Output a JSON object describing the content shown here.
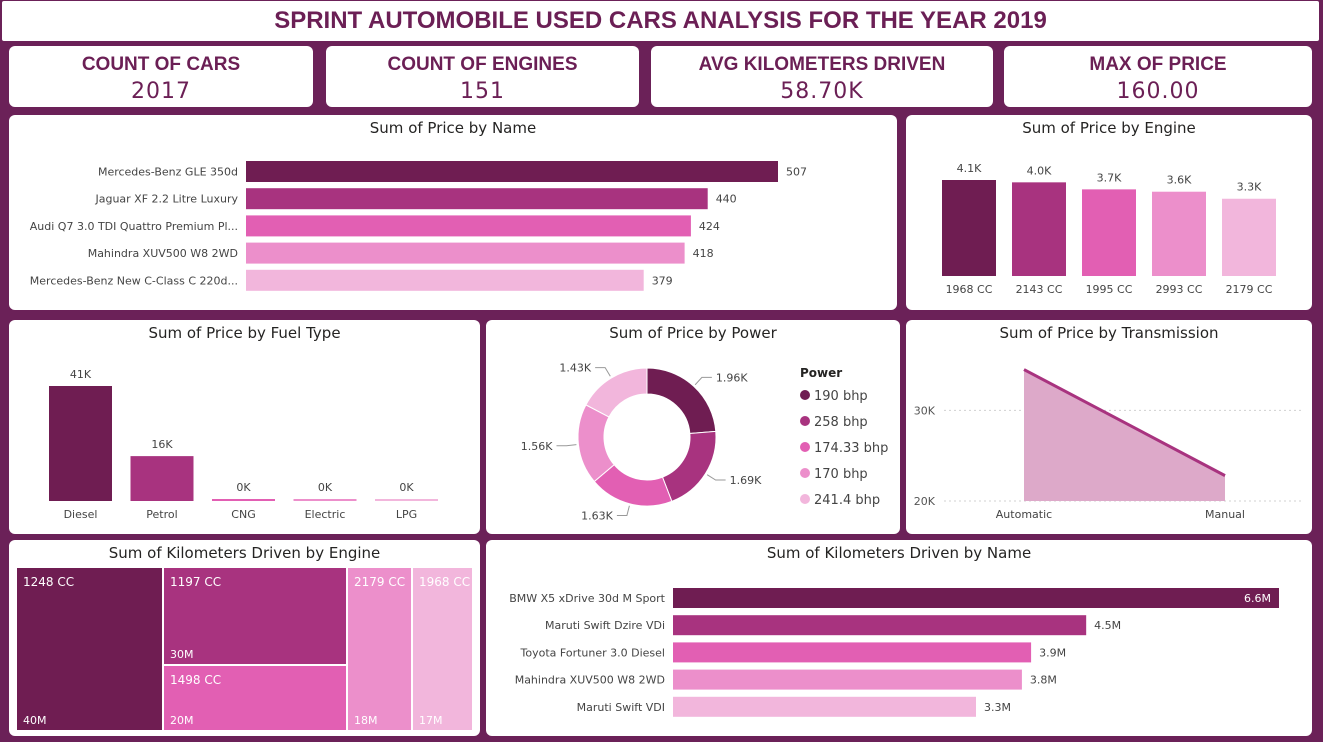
{
  "title": "SPRINT AUTOMOBILE USED CARS ANALYSIS FOR THE YEAR 2019",
  "kpis": [
    {
      "label": "COUNT OF CARS",
      "value": "2017"
    },
    {
      "label": "COUNT OF ENGINES",
      "value": "151"
    },
    {
      "label": "AVG KILOMETERS DRIVEN",
      "value": "58.70K"
    },
    {
      "label": "MAX OF PRICE",
      "value": "160.00"
    }
  ],
  "palette": [
    "#6f1d52",
    "#a8337f",
    "#e25fb3",
    "#ec8fcb",
    "#f2b6dc"
  ],
  "chart_data": [
    {
      "id": "price_by_name",
      "type": "bar",
      "orientation": "horizontal",
      "title": "Sum of Price by Name",
      "categories": [
        "Mercedes-Benz GLE 350d",
        "Jaguar XF 2.2 Litre Luxury",
        "Audi Q7 3.0 TDI Quattro Premium Pl...",
        "Mahindra XUV500 W8 2WD",
        "Mercedes-Benz New C-Class C 220d..."
      ],
      "values": [
        507,
        440,
        424,
        418,
        379
      ],
      "labels": [
        "507",
        "440",
        "424",
        "418",
        "379"
      ],
      "xlim": [
        0,
        507
      ]
    },
    {
      "id": "price_by_engine",
      "type": "bar",
      "title": "Sum of Price by Engine",
      "categories": [
        "1968 CC",
        "2143 CC",
        "1995 CC",
        "2993 CC",
        "2179 CC"
      ],
      "values": [
        4100,
        4000,
        3700,
        3600,
        3300
      ],
      "labels": [
        "4.1K",
        "4.0K",
        "3.7K",
        "3.6K",
        "3.3K"
      ],
      "ylim": [
        0,
        4100
      ]
    },
    {
      "id": "price_by_fuel",
      "type": "bar",
      "title": "Sum of Price by Fuel Type",
      "categories": [
        "Diesel",
        "Petrol",
        "CNG",
        "Electric",
        "LPG"
      ],
      "values": [
        41000,
        16000,
        0,
        0,
        0
      ],
      "labels": [
        "41K",
        "16K",
        "0K",
        "0K",
        "0K"
      ],
      "ylim": [
        0,
        41000
      ]
    },
    {
      "id": "price_by_power",
      "type": "pie",
      "donut": true,
      "title": "Sum of Price by Power",
      "legend_title": "Power",
      "categories": [
        "190 bhp",
        "258 bhp",
        "174.33 bhp",
        "170 bhp",
        "241.4 bhp"
      ],
      "values": [
        1960,
        1690,
        1630,
        1560,
        1430
      ],
      "labels": [
        "1.96K",
        "1.69K",
        "1.63K",
        "1.56K",
        "1.43K"
      ],
      "legend_position": "right"
    },
    {
      "id": "price_by_transmission",
      "type": "area",
      "title": "Sum of Price by Transmission",
      "categories": [
        "Automatic",
        "Manual"
      ],
      "values": [
        34500,
        22800
      ],
      "yticks": [
        "30K",
        "20K"
      ],
      "ytick_values": [
        30000,
        20000
      ],
      "ylim": [
        20000,
        35000
      ],
      "grid": true
    },
    {
      "id": "km_by_engine",
      "type": "treemap",
      "title": "Sum of Kilometers Driven by Engine",
      "items": [
        {
          "name": "1248 CC",
          "label": "40M",
          "value": 40
        },
        {
          "name": "1197 CC",
          "label": "30M",
          "value": 30
        },
        {
          "name": "1498 CC",
          "label": "20M",
          "value": 20
        },
        {
          "name": "2179 CC",
          "label": "18M",
          "value": 18
        },
        {
          "name": "1968 CC",
          "label": "17M",
          "value": 17
        }
      ]
    },
    {
      "id": "km_by_name",
      "type": "bar",
      "orientation": "horizontal",
      "title": "Sum of Kilometers Driven by Name",
      "categories": [
        "BMW X5 xDrive 30d M Sport",
        "Maruti Swift Dzire VDi",
        "Toyota Fortuner 3.0 Diesel",
        "Mahindra XUV500 W8 2WD",
        "Maruti Swift VDI"
      ],
      "values": [
        6.6,
        4.5,
        3.9,
        3.8,
        3.3
      ],
      "labels": [
        "6.6M",
        "4.5M",
        "3.9M",
        "3.8M",
        "3.3M"
      ],
      "xlim": [
        0,
        6.6
      ]
    }
  ]
}
